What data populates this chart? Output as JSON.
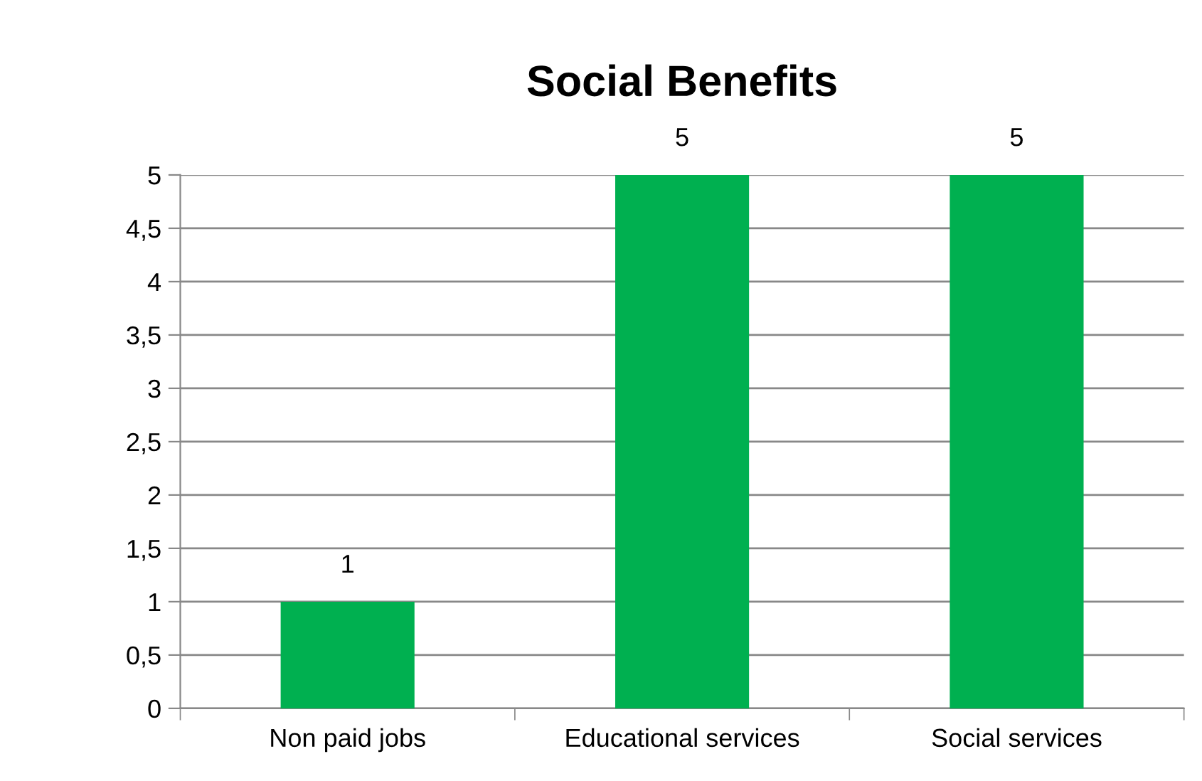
{
  "chart_data": {
    "type": "bar",
    "title": "Social Benefits",
    "categories": [
      "Non paid jobs",
      "Educational services",
      "Social services"
    ],
    "values": [
      1,
      5,
      5
    ],
    "color": "#00b050",
    "ylim": [
      0,
      5
    ],
    "yticks": [
      0,
      {
        "value": 0.5,
        "label": "0,5"
      },
      1,
      {
        "value": 1.5,
        "label": "1,5"
      },
      2,
      {
        "value": 2.5,
        "label": "2,5"
      },
      3,
      {
        "value": 3.5,
        "label": "3,5"
      },
      4,
      {
        "value": 4.5,
        "label": "4,5"
      },
      5
    ],
    "grid": "y",
    "data_labels": true,
    "legend": false
  }
}
